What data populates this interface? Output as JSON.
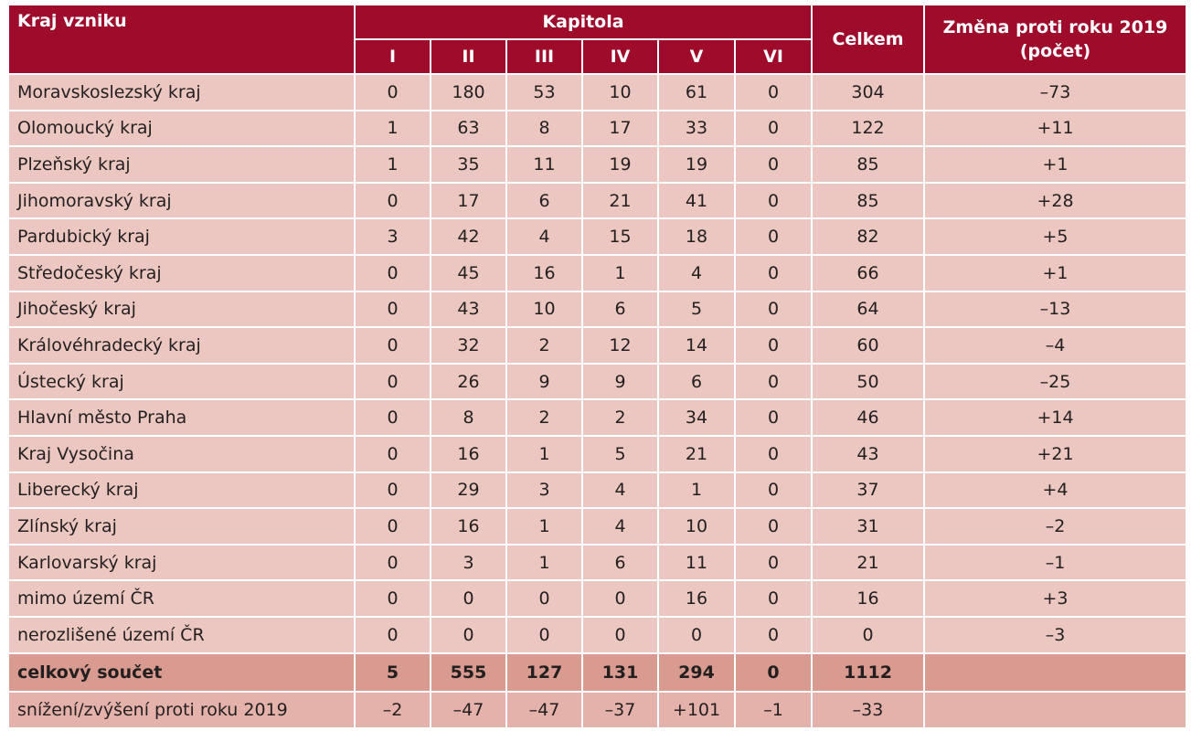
{
  "header": {
    "region": "Kraj vzniku",
    "chapter": "Kapitola",
    "chapters": [
      "I",
      "II",
      "III",
      "IV",
      "V",
      "VI"
    ],
    "total": "Celkem",
    "change": "Změna proti roku 2019 (počet)"
  },
  "table": {
    "rows": [
      [
        "Moravskoslezský kraj",
        "0",
        "180",
        "53",
        "10",
        "61",
        "0",
        "304",
        "–73"
      ],
      [
        "Olomoucký kraj",
        "1",
        "63",
        "8",
        "17",
        "33",
        "0",
        "122",
        "+11"
      ],
      [
        "Plzeňský kraj",
        "1",
        "35",
        "11",
        "19",
        "19",
        "0",
        "85",
        "+1"
      ],
      [
        "Jihomoravský kraj",
        "0",
        "17",
        "6",
        "21",
        "41",
        "0",
        "85",
        "+28"
      ],
      [
        "Pardubický kraj",
        "3",
        "42",
        "4",
        "15",
        "18",
        "0",
        "82",
        "+5"
      ],
      [
        "Středočeský kraj",
        "0",
        "45",
        "16",
        "1",
        "4",
        "0",
        "66",
        "+1"
      ],
      [
        "Jihočeský kraj",
        "0",
        "43",
        "10",
        "6",
        "5",
        "0",
        "64",
        "–13"
      ],
      [
        "Královéhradecký kraj",
        "0",
        "32",
        "2",
        "12",
        "14",
        "0",
        "60",
        "–4"
      ],
      [
        "Ústecký kraj",
        "0",
        "26",
        "9",
        "9",
        "6",
        "0",
        "50",
        "–25"
      ],
      [
        "Hlavní město Praha",
        "0",
        "8",
        "2",
        "2",
        "34",
        "0",
        "46",
        "+14"
      ],
      [
        "Kraj Vysočina",
        "0",
        "16",
        "1",
        "5",
        "21",
        "0",
        "43",
        "+21"
      ],
      [
        "Liberecký kraj",
        "0",
        "29",
        "3",
        "4",
        "1",
        "0",
        "37",
        "+4"
      ],
      [
        "Zlínský kraj",
        "0",
        "16",
        "1",
        "4",
        "10",
        "0",
        "31",
        "–2"
      ],
      [
        "Karlovarský kraj",
        "0",
        "3",
        "1",
        "6",
        "11",
        "0",
        "21",
        "–1"
      ],
      [
        "mimo území ČR",
        "0",
        "0",
        "0",
        "0",
        "16",
        "0",
        "16",
        "+3"
      ],
      [
        "nerozlišené území ČR",
        "0",
        "0",
        "0",
        "0",
        "0",
        "0",
        "0",
        "–3"
      ]
    ],
    "total_row": [
      "celkový součet",
      "5",
      "555",
      "127",
      "131",
      "294",
      "0",
      "1112"
    ],
    "change_row": [
      "snížení/zvýšení proti roku 2019",
      "–2",
      "–47",
      "–47",
      "–37",
      "+101",
      "–1",
      "–33"
    ]
  }
}
